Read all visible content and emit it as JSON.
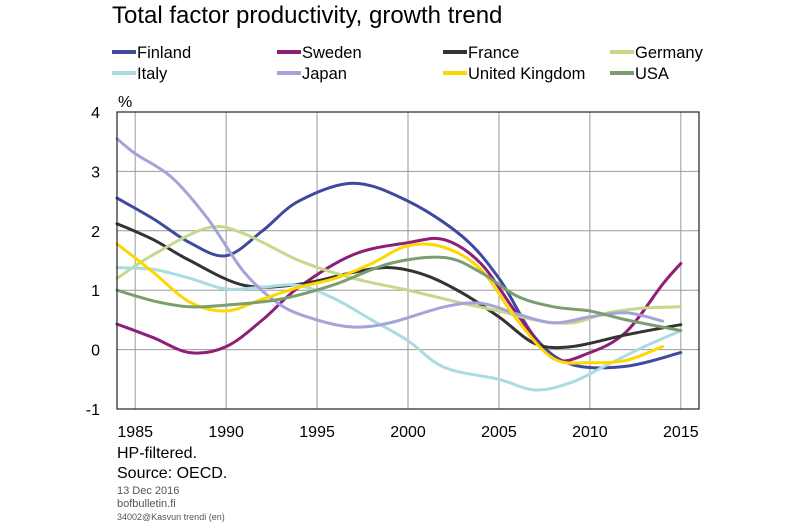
{
  "chart_data": {
    "type": "line",
    "title": "Total factor productivity, growth trend",
    "ylabel": "%",
    "xlabel": "",
    "xlim": [
      1984,
      2016
    ],
    "ylim": [
      -1,
      4
    ],
    "xticks": [
      1985,
      1990,
      1995,
      2000,
      2005,
      2010,
      2015
    ],
    "yticks": [
      -1,
      0,
      1,
      2,
      3,
      4
    ],
    "grid": true,
    "legend_position": "top",
    "series": [
      {
        "name": "Finland",
        "color": "#3f4a9e",
        "points": [
          [
            1984,
            2.55
          ],
          [
            1986,
            2.2
          ],
          [
            1988,
            1.8
          ],
          [
            1990,
            1.58
          ],
          [
            1992,
            2.0
          ],
          [
            1994,
            2.5
          ],
          [
            1997,
            2.8
          ],
          [
            2000,
            2.5
          ],
          [
            2003,
            1.9
          ],
          [
            2005,
            1.2
          ],
          [
            2007,
            0.2
          ],
          [
            2009,
            -0.25
          ],
          [
            2012,
            -0.28
          ],
          [
            2015,
            -0.05
          ]
        ]
      },
      {
        "name": "Sweden",
        "color": "#8e1e78",
        "points": [
          [
            1984,
            0.43
          ],
          [
            1986,
            0.2
          ],
          [
            1988,
            -0.05
          ],
          [
            1990,
            0.05
          ],
          [
            1992,
            0.5
          ],
          [
            1994,
            1.05
          ],
          [
            1997,
            1.6
          ],
          [
            2000,
            1.8
          ],
          [
            2002,
            1.85
          ],
          [
            2004,
            1.45
          ],
          [
            2006,
            0.6
          ],
          [
            2008,
            -0.15
          ],
          [
            2010,
            -0.05
          ],
          [
            2012,
            0.3
          ],
          [
            2014,
            1.1
          ],
          [
            2015,
            1.45
          ]
        ]
      },
      {
        "name": "France",
        "color": "#333333",
        "points": [
          [
            1984,
            2.12
          ],
          [
            1986,
            1.85
          ],
          [
            1988,
            1.5
          ],
          [
            1991,
            1.08
          ],
          [
            1994,
            1.1
          ],
          [
            1997,
            1.3
          ],
          [
            1999,
            1.38
          ],
          [
            2001,
            1.25
          ],
          [
            2003,
            0.95
          ],
          [
            2005,
            0.55
          ],
          [
            2007,
            0.1
          ],
          [
            2009,
            0.05
          ],
          [
            2012,
            0.25
          ],
          [
            2015,
            0.42
          ]
        ]
      },
      {
        "name": "Germany",
        "color": "#c5d98a",
        "points": [
          [
            1984,
            1.2
          ],
          [
            1986,
            1.6
          ],
          [
            1989,
            2.05
          ],
          [
            1991,
            1.95
          ],
          [
            1994,
            1.5
          ],
          [
            1997,
            1.2
          ],
          [
            2000,
            1.0
          ],
          [
            2003,
            0.78
          ],
          [
            2005,
            0.65
          ],
          [
            2007,
            0.5
          ],
          [
            2009,
            0.45
          ],
          [
            2011,
            0.62
          ],
          [
            2013,
            0.7
          ],
          [
            2015,
            0.72
          ]
        ]
      },
      {
        "name": "Italy",
        "color": "#a9dce0",
        "points": [
          [
            1984,
            1.38
          ],
          [
            1986,
            1.35
          ],
          [
            1988,
            1.2
          ],
          [
            1990,
            1.02
          ],
          [
            1992,
            1.05
          ],
          [
            1994,
            1.08
          ],
          [
            1996,
            0.85
          ],
          [
            1998,
            0.5
          ],
          [
            2000,
            0.15
          ],
          [
            2002,
            -0.3
          ],
          [
            2005,
            -0.5
          ],
          [
            2007,
            -0.68
          ],
          [
            2009,
            -0.55
          ],
          [
            2011,
            -0.25
          ],
          [
            2013,
            0.05
          ],
          [
            2015,
            0.32
          ]
        ]
      },
      {
        "name": "Japan",
        "color": "#a5a3d9",
        "points": [
          [
            1984,
            3.55
          ],
          [
            1985,
            3.3
          ],
          [
            1987,
            2.9
          ],
          [
            1989,
            2.2
          ],
          [
            1991,
            1.3
          ],
          [
            1993,
            0.75
          ],
          [
            1995,
            0.5
          ],
          [
            1997,
            0.38
          ],
          [
            1999,
            0.45
          ],
          [
            2002,
            0.72
          ],
          [
            2004,
            0.78
          ],
          [
            2006,
            0.6
          ],
          [
            2008,
            0.45
          ],
          [
            2010,
            0.55
          ],
          [
            2012,
            0.62
          ],
          [
            2014,
            0.48
          ]
        ]
      },
      {
        "name": "United Kingdom",
        "color": "#ffd700",
        "points": [
          [
            1984,
            1.78
          ],
          [
            1986,
            1.3
          ],
          [
            1988,
            0.8
          ],
          [
            1990,
            0.65
          ],
          [
            1992,
            0.85
          ],
          [
            1994,
            1.05
          ],
          [
            1996,
            1.2
          ],
          [
            1998,
            1.45
          ],
          [
            2000,
            1.75
          ],
          [
            2002,
            1.72
          ],
          [
            2004,
            1.35
          ],
          [
            2006,
            0.5
          ],
          [
            2008,
            -0.15
          ],
          [
            2010,
            -0.22
          ],
          [
            2012,
            -0.18
          ],
          [
            2014,
            0.05
          ]
        ]
      },
      {
        "name": "USA",
        "color": "#7a9e6e",
        "points": [
          [
            1984,
            1.0
          ],
          [
            1986,
            0.82
          ],
          [
            1988,
            0.72
          ],
          [
            1990,
            0.75
          ],
          [
            1993,
            0.85
          ],
          [
            1996,
            1.1
          ],
          [
            1999,
            1.45
          ],
          [
            2002,
            1.55
          ],
          [
            2004,
            1.3
          ],
          [
            2006,
            0.9
          ],
          [
            2008,
            0.72
          ],
          [
            2010,
            0.65
          ],
          [
            2012,
            0.5
          ],
          [
            2015,
            0.32
          ]
        ]
      }
    ],
    "notes": [
      "HP-filtered.",
      "Source: OECD."
    ],
    "meta": [
      "13 Dec 2016",
      "bofbulletin.fi",
      "34002@Kasvun trendi (en)"
    ]
  }
}
